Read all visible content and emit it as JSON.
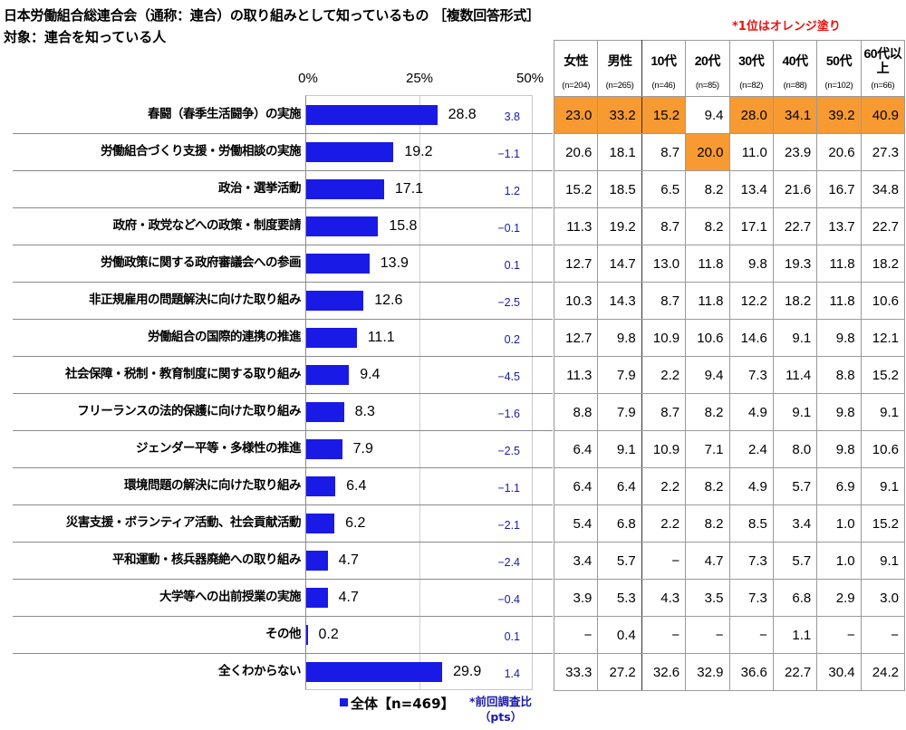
{
  "title": "日本労働組合総連合会（通称：連合）の取り組みとして知っているもの ［複数回答形式］",
  "subtitle": "対象：連合を知っている人",
  "note_top": "*1位はオレンジ塗り",
  "axis": {
    "ticks": [
      "0%",
      "25%",
      "50%"
    ]
  },
  "legend": {
    "label": "全体【n=469】",
    "color": "#1a1ae6"
  },
  "note_bottom": {
    "line1": "*前回調査比",
    "line2": "（pts）"
  },
  "table": {
    "columns": [
      {
        "label": "女性",
        "n": "(n=204)"
      },
      {
        "label": "男性",
        "n": "(n=265)"
      },
      {
        "label": "10代",
        "n": "(n=46)"
      },
      {
        "label": "20代",
        "n": "(n=85)"
      },
      {
        "label": "30代",
        "n": "(n=82)"
      },
      {
        "label": "40代",
        "n": "(n=88)"
      },
      {
        "label": "50代",
        "n": "(n=102)"
      },
      {
        "label": "60代以上",
        "n": "(n=66)"
      }
    ],
    "highlight_color": "#f79a32"
  },
  "chart_data": {
    "type": "bar",
    "orientation": "horizontal",
    "title": "日本労働組合総連合会（通称：連合）の取り組みとして知っているもの ［複数回答形式］",
    "subtitle": "対象：連合を知っている人",
    "xlabel": "",
    "ylabel": "",
    "xlim": [
      0,
      50
    ],
    "xticks": [
      "0%",
      "25%",
      "50%"
    ],
    "grid": true,
    "legend": [
      "全体【n=469】"
    ],
    "categories": [
      "春闘（春季生活闘争）の実施",
      "労働組合づくり支援・労働相談の実施",
      "政治・選挙活動",
      "政府・政党などへの政策・制度要請",
      "労働政策に関する政府審議会への参画",
      "非正規雇用の問題解決に向けた取り組み",
      "労働組合の国際的連携の推進",
      "社会保障・税制・教育制度に関する取り組み",
      "フリーランスの法的保護に向けた取り組み",
      "ジェンダー平等・多様性の推進",
      "環境問題の解決に向けた取り組み",
      "災害支援・ボランティア活動、社会貢献活動",
      "平和運動・核兵器廃絶への取り組み",
      "大学等への出前授業の実施",
      "その他",
      "全くわからない"
    ],
    "series": [
      {
        "name": "全体【n=469】",
        "values": [
          28.8,
          19.2,
          17.1,
          15.8,
          13.9,
          12.6,
          11.1,
          9.4,
          8.3,
          7.9,
          6.4,
          6.2,
          4.7,
          4.7,
          0.2,
          29.9
        ]
      }
    ],
    "diff_vs_previous_pts": [
      "3.8",
      "−1.1",
      "1.2",
      "−0.1",
      "0.1",
      "−2.5",
      "0.2",
      "−4.5",
      "−1.6",
      "−2.5",
      "−1.1",
      "−2.1",
      "−2.4",
      "−0.4",
      "0.1",
      "1.4"
    ],
    "segment_table": {
      "columns": [
        "女性(n=204)",
        "男性(n=265)",
        "10代(n=46)",
        "20代(n=85)",
        "30代(n=82)",
        "40代(n=88)",
        "50代(n=102)",
        "60代以上(n=66)"
      ],
      "rows": [
        [
          "23.0",
          "33.2",
          "15.2",
          "9.4",
          "28.0",
          "34.1",
          "39.2",
          "40.9"
        ],
        [
          "20.6",
          "18.1",
          "8.7",
          "20.0",
          "11.0",
          "23.9",
          "20.6",
          "27.3"
        ],
        [
          "15.2",
          "18.5",
          "6.5",
          "8.2",
          "13.4",
          "21.6",
          "16.7",
          "34.8"
        ],
        [
          "11.3",
          "19.2",
          "8.7",
          "8.2",
          "17.1",
          "22.7",
          "13.7",
          "22.7"
        ],
        [
          "12.7",
          "14.7",
          "13.0",
          "11.8",
          "9.8",
          "19.3",
          "11.8",
          "18.2"
        ],
        [
          "10.3",
          "14.3",
          "8.7",
          "11.8",
          "12.2",
          "18.2",
          "11.8",
          "10.6"
        ],
        [
          "12.7",
          "9.8",
          "10.9",
          "10.6",
          "14.6",
          "9.1",
          "9.8",
          "12.1"
        ],
        [
          "11.3",
          "7.9",
          "2.2",
          "9.4",
          "7.3",
          "11.4",
          "8.8",
          "15.2"
        ],
        [
          "8.8",
          "7.9",
          "8.7",
          "8.2",
          "4.9",
          "9.1",
          "9.8",
          "9.1"
        ],
        [
          "6.4",
          "9.1",
          "10.9",
          "7.1",
          "2.4",
          "8.0",
          "9.8",
          "10.6"
        ],
        [
          "6.4",
          "6.4",
          "2.2",
          "8.2",
          "4.9",
          "5.7",
          "6.9",
          "9.1"
        ],
        [
          "5.4",
          "6.8",
          "2.2",
          "8.2",
          "8.5",
          "3.4",
          "1.0",
          "15.2"
        ],
        [
          "3.4",
          "5.7",
          "−",
          "4.7",
          "7.3",
          "5.7",
          "1.0",
          "9.1"
        ],
        [
          "3.9",
          "5.3",
          "4.3",
          "3.5",
          "7.3",
          "6.8",
          "2.9",
          "3.0"
        ],
        [
          "−",
          "0.4",
          "−",
          "−",
          "−",
          "1.1",
          "−",
          "−"
        ],
        [
          "33.3",
          "27.2",
          "32.6",
          "32.9",
          "36.6",
          "22.7",
          "30.4",
          "24.2"
        ]
      ],
      "highlighted_cells": [
        [
          0,
          0
        ],
        [
          0,
          1
        ],
        [
          0,
          2
        ],
        [
          1,
          3
        ],
        [
          0,
          4
        ],
        [
          0,
          5
        ],
        [
          0,
          6
        ],
        [
          0,
          7
        ]
      ]
    }
  }
}
